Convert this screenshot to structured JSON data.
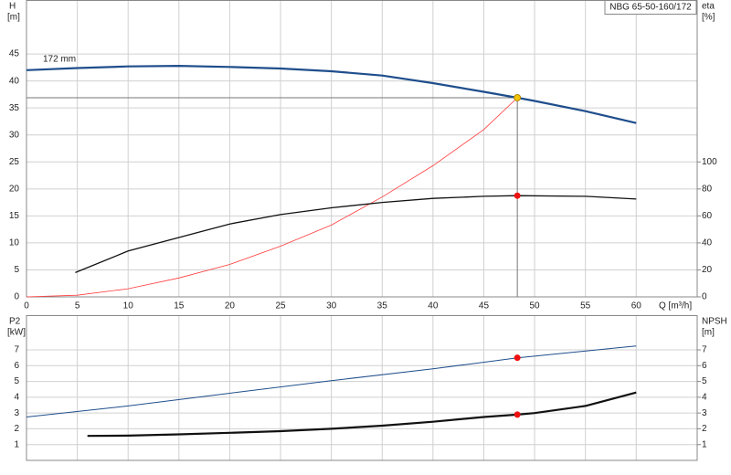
{
  "chart_data": [
    {
      "type": "line",
      "title": "NBG 65-50-160/172",
      "annotation": "172 mm",
      "y_label": "H",
      "y_unit": "[m]",
      "y2_label": "eta",
      "y2_unit": "[%]",
      "x_label": "Q [m³/h]",
      "xlim": [
        0,
        66
      ],
      "xticks": [
        0,
        5,
        10,
        15,
        20,
        25,
        30,
        35,
        40,
        45,
        50,
        55,
        60
      ],
      "ylim": [
        0,
        55
      ],
      "yticks": [
        0,
        5,
        10,
        15,
        20,
        25,
        30,
        35,
        40,
        45
      ],
      "y2lim": [
        0,
        220
      ],
      "y2ticks": [
        0,
        20,
        40,
        60,
        80,
        100
      ],
      "grid": true,
      "series": [
        {
          "color": "#1f4e8c",
          "width": 2.2,
          "x": [
            0,
            5,
            10,
            15,
            20,
            25,
            30,
            35,
            40,
            45,
            48.3,
            50,
            55,
            60
          ],
          "values": [
            42,
            42.4,
            42.7,
            42.8,
            42.6,
            42.3,
            41.8,
            41.0,
            39.6,
            38.0,
            36.9,
            36.3,
            34.4,
            32.2
          ]
        },
        {
          "color": "#ff3b3b",
          "width": 0.8,
          "x": [
            0,
            5,
            10,
            15,
            20,
            25,
            30,
            35,
            40,
            45,
            48.3
          ],
          "values": [
            0,
            0.3,
            1.5,
            3.5,
            6.0,
            9.4,
            13.3,
            18.5,
            24.3,
            31.0,
            36.9
          ]
        },
        {
          "color": "#111111",
          "width": 1.3,
          "axis": "y2",
          "x": [
            4.8,
            10,
            15,
            20,
            25,
            30,
            35,
            40,
            45,
            48.3,
            55,
            60
          ],
          "values": [
            18,
            34,
            44,
            54,
            61,
            66,
            70,
            73,
            74.5,
            75,
            74.5,
            72.5
          ]
        }
      ],
      "points": [
        {
          "color": "#f5c400",
          "x": 48.3,
          "y": 36.9,
          "guide": true
        },
        {
          "color": "#ee1111",
          "x": 48.3,
          "y": 75,
          "axis": "y2"
        }
      ]
    },
    {
      "type": "line",
      "y_label": "P2",
      "y_unit": "[kW]",
      "y2_label": "NPSH",
      "y2_unit": "[m]",
      "xlim": [
        0,
        66
      ],
      "xticks": [
        0,
        5,
        10,
        15,
        20,
        25,
        30,
        35,
        40,
        45,
        50,
        55,
        60
      ],
      "ylim": [
        0,
        9.2
      ],
      "yticks": [
        1,
        2,
        3,
        4,
        5,
        6,
        7
      ],
      "y2lim": [
        0,
        9.2
      ],
      "y2ticks": [
        1,
        2,
        3,
        4,
        5,
        6,
        7
      ],
      "grid": true,
      "series": [
        {
          "color": "#1f4e8c",
          "width": 1,
          "x": [
            0,
            10,
            20,
            30,
            40,
            48.3,
            60
          ],
          "values": [
            2.75,
            3.45,
            4.25,
            5.05,
            5.8,
            6.5,
            7.25
          ]
        },
        {
          "color": "#111111",
          "width": 2.2,
          "axis": "y2",
          "x": [
            6,
            10,
            15,
            20,
            25,
            30,
            35,
            40,
            45,
            48.3,
            50,
            55,
            60
          ],
          "values": [
            1.55,
            1.57,
            1.65,
            1.75,
            1.85,
            2.0,
            2.2,
            2.45,
            2.75,
            2.9,
            3.0,
            3.45,
            4.3
          ]
        }
      ],
      "points": [
        {
          "color": "#ee1111",
          "x": 48.3,
          "y": 6.5
        },
        {
          "color": "#ee1111",
          "x": 48.3,
          "y": 2.9,
          "axis": "y2"
        }
      ]
    }
  ]
}
